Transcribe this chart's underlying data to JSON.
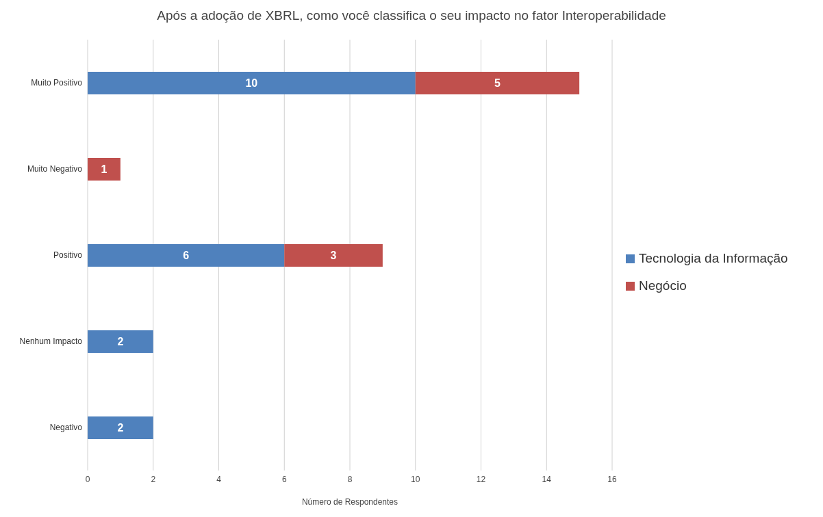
{
  "chart_data": {
    "type": "bar",
    "orientation": "horizontal",
    "stacked": true,
    "title": "Após a adoção de XBRL, como você classifica o seu impacto no fator Interoperabilidade",
    "xlabel": "Número de Respondentes",
    "categories": [
      "Muito Positivo",
      "Muito Negativo",
      "Positivo",
      "Nenhum Impacto",
      "Negativo"
    ],
    "series": [
      {
        "name": "Tecnologia da Informação",
        "color": "#4f81bd",
        "values": [
          10,
          null,
          6,
          2,
          2
        ]
      },
      {
        "name": "Negócio",
        "color": "#c0504d",
        "values": [
          5,
          1,
          3,
          null,
          null
        ]
      }
    ],
    "xlim": [
      0,
      16
    ],
    "xticks": [
      0,
      2,
      4,
      6,
      8,
      10,
      12,
      14,
      16
    ],
    "grid": "x",
    "legend": "right",
    "data_labels": true
  }
}
